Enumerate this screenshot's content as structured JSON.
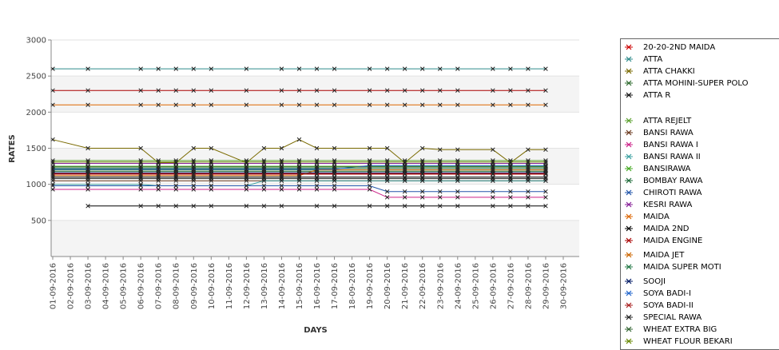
{
  "chart_data": {
    "type": "line",
    "xlabel": "DAYS",
    "ylabel": "RATES",
    "yticks": [
      500,
      1000,
      1500,
      2000,
      2500,
      3000
    ],
    "ylim": [
      0,
      3000
    ],
    "grid": true,
    "legend_position": "right",
    "x": [
      "01-09-2016",
      "02-09-2016",
      "03-09-2016",
      "04-09-2016",
      "05-09-2016",
      "06-09-2016",
      "07-09-2016",
      "08-09-2016",
      "09-09-2016",
      "10-09-2016",
      "11-09-2016",
      "12-09-2016",
      "13-09-2016",
      "14-09-2016",
      "15-09-2016",
      "16-09-2016",
      "17-09-2016",
      "18-09-2016",
      "19-09-2016",
      "20-09-2016",
      "21-09-2016",
      "22-09-2016",
      "23-09-2016",
      "24-09-2016",
      "25-09-2016",
      "26-09-2016",
      "27-09-2016",
      "28-09-2016",
      "29-09-2016",
      "30-09-2016"
    ],
    "series": [
      {
        "name": "20-20-2ND MAIDA",
        "color": "#cc0000",
        "values": [
          1150,
          null,
          1150,
          null,
          null,
          1150,
          1150,
          1150,
          1150,
          1150,
          null,
          1150,
          1150,
          1150,
          1150,
          1150,
          1150,
          null,
          1150,
          1150,
          1150,
          1150,
          1150,
          1150,
          null,
          1150,
          1150,
          1150,
          1150,
          null
        ]
      },
      {
        "name": "ATTA",
        "color": "#2e8b8b",
        "values": [
          2600,
          null,
          2600,
          null,
          null,
          2600,
          2600,
          2600,
          2600,
          2600,
          null,
          2600,
          null,
          2600,
          2600,
          2600,
          2600,
          null,
          2600,
          2600,
          2600,
          2600,
          2600,
          2600,
          null,
          2600,
          2600,
          2600,
          2600,
          null
        ]
      },
      {
        "name": "ATTA CHAKKI",
        "color": "#7a6a00",
        "values": [
          1620,
          null,
          1500,
          null,
          null,
          1500,
          1300,
          1300,
          1500,
          1500,
          null,
          1300,
          1500,
          1500,
          1620,
          1500,
          1500,
          null,
          1500,
          1500,
          1300,
          1500,
          1480,
          1480,
          null,
          1480,
          1300,
          1480,
          1480,
          null
        ]
      },
      {
        "name": "ATTA MOHINI-SUPER POLO",
        "color": "#2f6b2f",
        "values": [
          1200,
          null,
          1200,
          null,
          null,
          1200,
          1200,
          1200,
          1200,
          1200,
          null,
          1200,
          1200,
          1200,
          1200,
          1200,
          1200,
          null,
          1200,
          1200,
          1200,
          1200,
          1200,
          1200,
          null,
          1200,
          1200,
          1200,
          1200,
          null
        ]
      },
      {
        "name": "ATTA R",
        "color": "#111111",
        "values": [
          1100,
          null,
          1100,
          null,
          null,
          1100,
          1100,
          1100,
          1100,
          1100,
          null,
          1100,
          1100,
          1100,
          1100,
          1100,
          1100,
          null,
          1100,
          1100,
          1100,
          1100,
          1100,
          1100,
          null,
          1100,
          1100,
          1100,
          1100,
          null
        ]
      },
      {
        "name": "ATTA REJELT",
        "color": "#5aa02c",
        "values": [
          1330,
          null,
          1330,
          null,
          null,
          1330,
          1330,
          1330,
          1330,
          1330,
          null,
          1330,
          1330,
          1330,
          1330,
          1330,
          1330,
          null,
          1330,
          1330,
          1330,
          1330,
          1330,
          1330,
          null,
          1330,
          1330,
          1330,
          1330,
          null
        ]
      },
      {
        "name": "BANSI RAWA",
        "color": "#6b3a1e",
        "values": [
          1050,
          null,
          1050,
          null,
          null,
          1050,
          1050,
          1050,
          1050,
          1050,
          null,
          1050,
          1050,
          1050,
          1050,
          1050,
          1050,
          null,
          1050,
          1050,
          1050,
          1050,
          1050,
          1050,
          null,
          1050,
          1050,
          1050,
          1050,
          null
        ]
      },
      {
        "name": "BANSI RAWA I",
        "color": "#cc2288",
        "values": [
          930,
          null,
          930,
          null,
          null,
          930,
          930,
          930,
          930,
          930,
          null,
          930,
          930,
          930,
          930,
          930,
          930,
          null,
          930,
          820,
          820,
          820,
          820,
          820,
          null,
          820,
          820,
          820,
          820,
          null
        ]
      },
      {
        "name": "BANSI RAWA II",
        "color": "#3aa0a0",
        "values": [
          1000,
          null,
          1000,
          null,
          null,
          1000,
          980,
          980,
          980,
          980,
          null,
          980,
          1050,
          1050,
          1050,
          1050,
          1050,
          null,
          1050,
          1050,
          1050,
          1050,
          1050,
          1050,
          null,
          1050,
          1050,
          1050,
          1050,
          null
        ]
      },
      {
        "name": "BANSIRAWA",
        "color": "#44aa22",
        "values": [
          1250,
          null,
          1250,
          null,
          null,
          1250,
          1250,
          1250,
          1250,
          1250,
          null,
          1250,
          1250,
          1250,
          1250,
          1250,
          1250,
          null,
          1250,
          1250,
          1250,
          1250,
          1250,
          1250,
          null,
          1250,
          1250,
          1250,
          1250,
          null
        ]
      },
      {
        "name": "BOMBAY RAWA",
        "color": "#1f6b3a",
        "values": [
          1180,
          null,
          1180,
          null,
          null,
          1180,
          1180,
          1180,
          1180,
          1180,
          null,
          1180,
          1180,
          1180,
          1180,
          1180,
          1180,
          null,
          1180,
          1180,
          1180,
          1180,
          1180,
          1180,
          null,
          1180,
          1180,
          1180,
          1180,
          null
        ]
      },
      {
        "name": "CHIROTI RAWA",
        "color": "#2255aa",
        "values": [
          980,
          null,
          980,
          null,
          null,
          980,
          980,
          980,
          980,
          980,
          null,
          980,
          980,
          980,
          980,
          980,
          980,
          null,
          980,
          900,
          900,
          900,
          900,
          900,
          null,
          900,
          900,
          900,
          900,
          null
        ]
      },
      {
        "name": "KESRI RAWA",
        "color": "#882299",
        "values": [
          1290,
          null,
          1290,
          null,
          null,
          1290,
          1290,
          1290,
          1290,
          1290,
          null,
          1290,
          1290,
          1290,
          1290,
          1290,
          1290,
          null,
          1290,
          1290,
          1290,
          1290,
          1290,
          1290,
          null,
          1290,
          1290,
          1290,
          1290,
          null
        ]
      },
      {
        "name": "MAIDA",
        "color": "#dd6600",
        "values": [
          2100,
          null,
          2100,
          null,
          null,
          2100,
          2100,
          2100,
          2100,
          2100,
          null,
          2100,
          null,
          2100,
          2100,
          2100,
          2100,
          null,
          2100,
          2100,
          2100,
          2100,
          2100,
          2100,
          null,
          2100,
          2100,
          2100,
          2100,
          null
        ]
      },
      {
        "name": "MAIDA 2ND",
        "color": "#000000",
        "values": [
          null,
          null,
          700,
          null,
          null,
          700,
          700,
          700,
          700,
          700,
          null,
          700,
          700,
          700,
          null,
          700,
          700,
          null,
          700,
          700,
          700,
          700,
          700,
          700,
          null,
          700,
          700,
          700,
          700,
          null
        ]
      },
      {
        "name": "MAIDA ENGINE",
        "color": "#aa0000",
        "values": [
          2300,
          null,
          2300,
          null,
          null,
          2300,
          2300,
          2300,
          2300,
          2300,
          null,
          2300,
          null,
          2300,
          2300,
          2300,
          2300,
          null,
          2300,
          2300,
          2300,
          2300,
          2300,
          2300,
          null,
          2300,
          2300,
          2300,
          2300,
          null
        ]
      },
      {
        "name": "MAIDA JET",
        "color": "#cc6600",
        "values": [
          1120,
          null,
          1120,
          null,
          null,
          1120,
          1120,
          1120,
          1120,
          1120,
          null,
          1120,
          1120,
          1120,
          1120,
          1200,
          1200,
          null,
          1200,
          1200,
          1200,
          1200,
          1200,
          1200,
          null,
          1200,
          1200,
          1200,
          1200,
          null
        ]
      },
      {
        "name": "MAIDA SUPER MOTI",
        "color": "#227744",
        "values": [
          1220,
          null,
          1220,
          null,
          null,
          1220,
          1220,
          1220,
          1220,
          1220,
          null,
          1220,
          1220,
          1220,
          1220,
          1220,
          1220,
          null,
          1220,
          1220,
          1220,
          1220,
          1220,
          1220,
          null,
          1220,
          1220,
          1220,
          1220,
          null
        ]
      },
      {
        "name": "SOOJI",
        "color": "#001a66",
        "values": [
          1160,
          null,
          1160,
          null,
          null,
          1160,
          1160,
          1160,
          1160,
          1160,
          null,
          1160,
          1160,
          1160,
          1160,
          1160,
          1160,
          null,
          1160,
          1160,
          1160,
          1160,
          1160,
          1160,
          null,
          1160,
          1160,
          1160,
          1160,
          null
        ]
      },
      {
        "name": "SOYA BADI-I",
        "color": "#2266cc",
        "values": [
          1210,
          null,
          1210,
          null,
          null,
          1210,
          1210,
          1210,
          1210,
          1210,
          null,
          1210,
          1210,
          1210,
          1210,
          1210,
          1210,
          null,
          1260,
          1260,
          1260,
          1260,
          1260,
          1260,
          null,
          1260,
          1260,
          1260,
          1260,
          null
        ]
      },
      {
        "name": "SOYA BADI-II",
        "color": "#aa2222",
        "values": [
          1140,
          null,
          1140,
          null,
          null,
          1140,
          1140,
          1140,
          1140,
          1140,
          null,
          1140,
          1140,
          1140,
          1140,
          1140,
          1140,
          null,
          1140,
          1140,
          1140,
          1140,
          1140,
          1140,
          null,
          1140,
          1140,
          1140,
          1140,
          null
        ]
      },
      {
        "name": "SPECIAL RAWA",
        "color": "#222222",
        "values": [
          1080,
          null,
          1080,
          null,
          null,
          1080,
          1080,
          1080,
          1080,
          1080,
          null,
          1080,
          1080,
          1080,
          1080,
          1080,
          1080,
          null,
          1080,
          1080,
          1080,
          1080,
          1080,
          1080,
          null,
          1080,
          1080,
          1080,
          1080,
          null
        ]
      },
      {
        "name": "WHEAT EXTRA BIG",
        "color": "#336633",
        "values": [
          1240,
          null,
          1240,
          null,
          null,
          1240,
          1240,
          1240,
          1240,
          1240,
          null,
          1240,
          1240,
          1240,
          1240,
          1240,
          1240,
          null,
          1240,
          1240,
          1240,
          1240,
          1240,
          1240,
          null,
          1240,
          1240,
          1240,
          1240,
          null
        ]
      },
      {
        "name": "WHEAT FLOUR BEKARI",
        "color": "#668800",
        "values": [
          1310,
          null,
          1310,
          null,
          null,
          1310,
          1310,
          1310,
          1310,
          1310,
          null,
          1310,
          1310,
          1310,
          1310,
          1310,
          1310,
          null,
          1310,
          1310,
          1310,
          1310,
          1310,
          1310,
          null,
          1310,
          1310,
          1310,
          1310,
          null
        ]
      }
    ]
  }
}
